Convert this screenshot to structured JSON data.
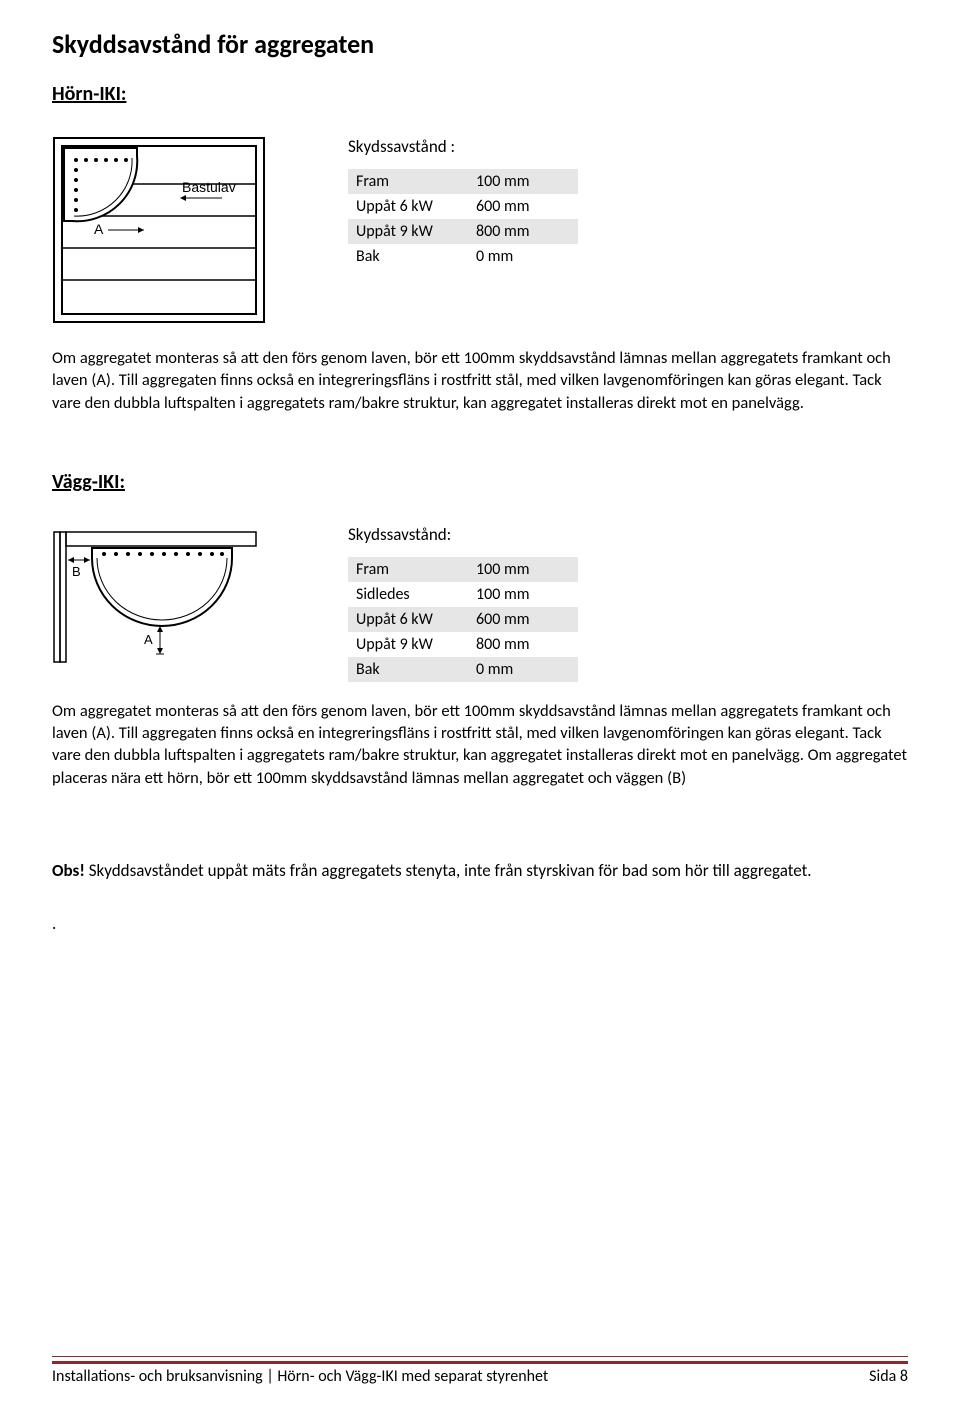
{
  "title": "Skyddsavstånd för aggregaten",
  "section1": {
    "heading": "Hörn-IKI:",
    "diagram_label_a": "A",
    "diagram_label_bench": "Bastulav",
    "table_title": "Skydssavstånd :",
    "rows": [
      {
        "label": "Fram",
        "value": "100 mm",
        "shade": true
      },
      {
        "label": "Uppåt 6 kW",
        "value": "600 mm",
        "shade": false
      },
      {
        "label": "Uppåt 9 kW",
        "value": "800 mm",
        "shade": true
      },
      {
        "label": "Bak",
        "value": "0 mm",
        "shade": false
      }
    ],
    "para": "Om aggregatet monteras så att den förs genom laven, bör ett 100mm skyddsavstånd lämnas mellan aggregatets framkant och laven (A). Till aggregaten finns också en integreringsfläns i rostfritt stål, med vilken lavgenomföringen kan göras elegant. Tack vare den dubbla luftspalten i aggregatets ram/bakre struktur, kan aggregatet installeras direkt mot en panelvägg."
  },
  "section2": {
    "heading": "Vägg-IKI:",
    "diagram_label_a": "A",
    "diagram_label_b": "B",
    "table_title": "Skydssavstånd:",
    "rows": [
      {
        "label": "Fram",
        "value": "100 mm",
        "shade": true
      },
      {
        "label": "Sidledes",
        "value": "100 mm",
        "shade": false
      },
      {
        "label": "Uppåt 6 kW",
        "value": "600 mm",
        "shade": true
      },
      {
        "label": "Uppåt 9 kW",
        "value": "800 mm",
        "shade": false
      },
      {
        "label": "Bak",
        "value": "0 mm",
        "shade": true
      }
    ],
    "para": "Om aggregatet monteras så att den förs genom laven, bör ett 100mm skyddsavstånd lämnas mellan aggregatets framkant och laven (A). Till aggregaten finns också en integreringsfläns i rostfritt stål, med vilken lavgenomföringen kan göras elegant. Tack vare den dubbla luftspalten i aggregatets ram/bakre struktur, kan aggregatet installeras direkt mot en panelvägg. Om aggregatet placeras nära ett hörn, bör ett 100mm skyddsavstånd lämnas mellan aggregatet och väggen (B)"
  },
  "obs_bold": "Obs!",
  "obs_text": " Skyddsavståndet uppåt mäts från aggregatets stenyta, inte från styrskivan för bad som hör till aggregatet.",
  "footer_left": "Installations- och bruksanvisning | Hörn- och Vägg-IKI med separat styrenhet",
  "footer_right": "Sida 8",
  "footer_line_color": "#8b2a2a"
}
